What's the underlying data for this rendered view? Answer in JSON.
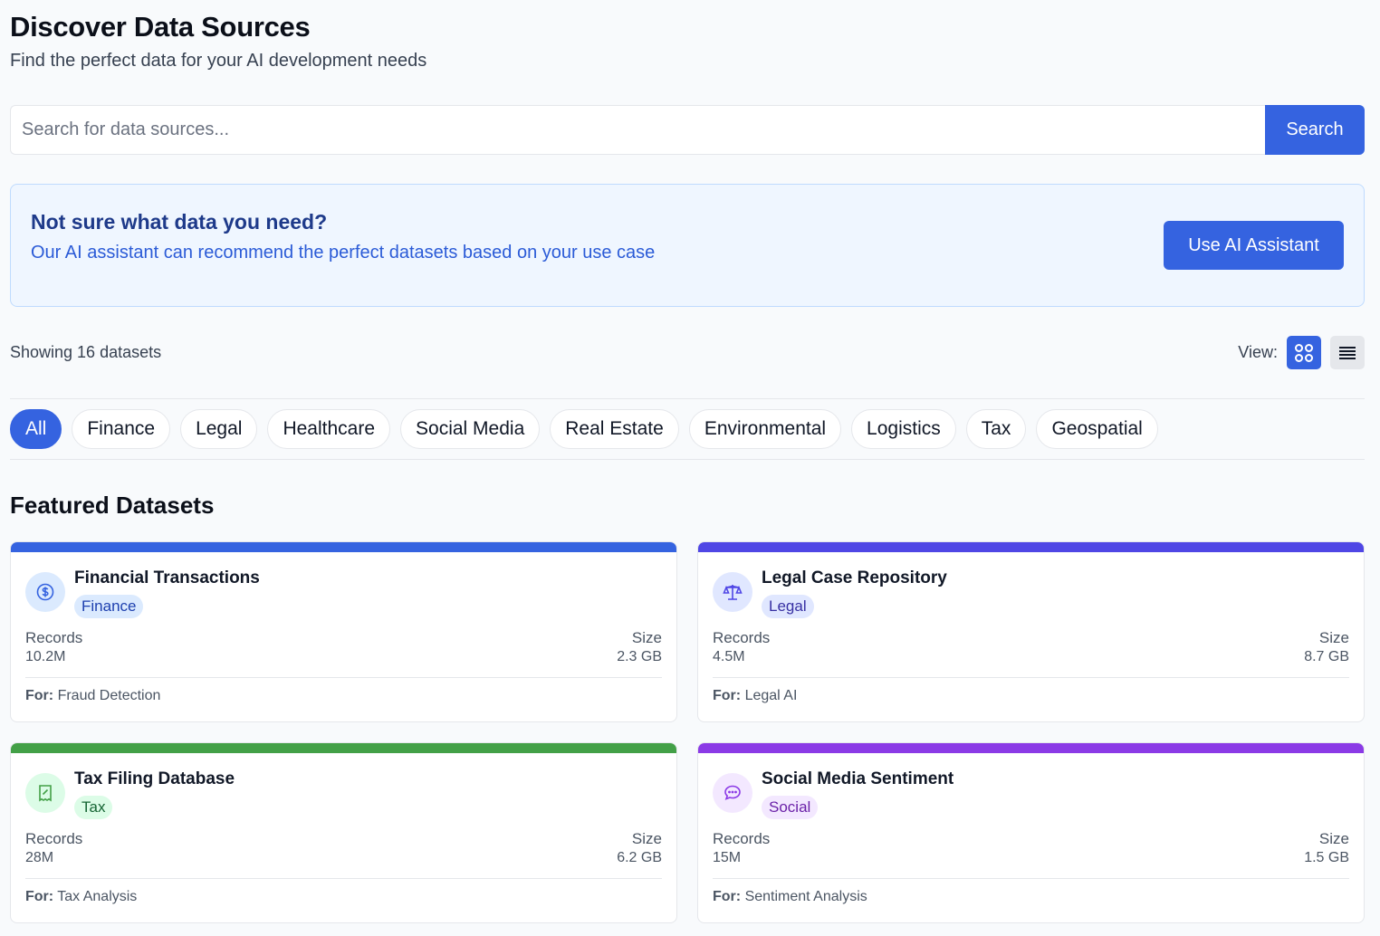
{
  "header": {
    "title": "Discover Data Sources",
    "subtitle": "Find the perfect data for your AI development needs"
  },
  "search": {
    "placeholder": "Search for data sources...",
    "value": "",
    "button_label": "Search"
  },
  "assistant_banner": {
    "title": "Not sure what data you need?",
    "text": "Our AI assistant can recommend the perfect datasets based on your use case",
    "button_label": "Use AI Assistant"
  },
  "results": {
    "count_text": "Showing 16 datasets",
    "view_label": "View:",
    "active_view": "grid"
  },
  "categories": [
    "All",
    "Finance",
    "Legal",
    "Healthcare",
    "Social Media",
    "Real Estate",
    "Environmental",
    "Logistics",
    "Tax",
    "Geospatial"
  ],
  "active_category": "All",
  "featured": {
    "title": "Featured Datasets",
    "records_label": "Records",
    "size_label": "Size",
    "for_label": "For:",
    "cards": [
      {
        "title": "Financial Transactions",
        "tag": "Finance",
        "records": "10.2M",
        "size": "2.3 GB",
        "use_case": "Fraud Detection",
        "icon": "dollar-icon",
        "accent": "#3563e0",
        "icon_bg": "#dbeafe",
        "tag_bg": "#dbeafe",
        "tag_color": "#1e40af"
      },
      {
        "title": "Legal Case Repository",
        "tag": "Legal",
        "records": "4.5M",
        "size": "8.7 GB",
        "use_case": "Legal AI",
        "icon": "scale-icon",
        "accent": "#4f46e5",
        "icon_bg": "#e0e7ff",
        "tag_bg": "#e0e7ff",
        "tag_color": "#3730a3"
      },
      {
        "title": "Tax Filing Database",
        "tag": "Tax",
        "records": "28M",
        "size": "6.2 GB",
        "use_case": "Tax Analysis",
        "icon": "receipt-icon",
        "accent": "#43a047",
        "icon_bg": "#dcfce7",
        "tag_bg": "#dcfce7",
        "tag_color": "#166534"
      },
      {
        "title": "Social Media Sentiment",
        "tag": "Social",
        "records": "15M",
        "size": "1.5 GB",
        "use_case": "Sentiment Analysis",
        "icon": "chat-icon",
        "accent": "#8b3ae6",
        "icon_bg": "#f3e8ff",
        "tag_bg": "#f3e8ff",
        "tag_color": "#6b21a8"
      }
    ]
  }
}
